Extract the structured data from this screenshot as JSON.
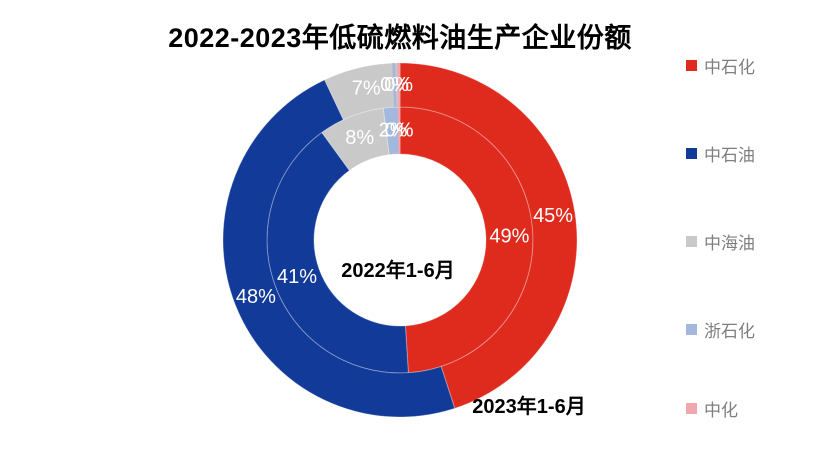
{
  "chart_data": {
    "type": "donut",
    "title": "2022-2023年低硫燃料油生产企业份额",
    "categories": [
      "中石化",
      "中石油",
      "中海油",
      "浙石化",
      "中化"
    ],
    "colors": [
      "#DF2B1E",
      "#113A99",
      "#C9C9C9",
      "#A3B8DC",
      "#F2A6AD"
    ],
    "legend_position": "right",
    "legend_text_color": "#7F7F7F",
    "value_suffix": "%",
    "start_angle_deg": 0,
    "direction": "clockwise",
    "rings": [
      {
        "name": "2022年1-6月",
        "position": "inner",
        "values": [
          49,
          41,
          8,
          2,
          0
        ]
      },
      {
        "name": "2023年1-6月",
        "position": "outer",
        "values": [
          45,
          48,
          7,
          0,
          0
        ]
      }
    ]
  }
}
